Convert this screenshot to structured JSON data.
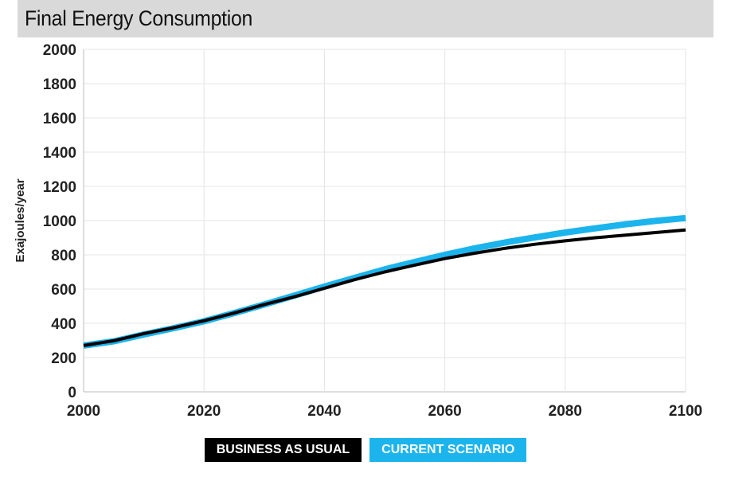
{
  "header": {
    "title": "Final Energy Consumption"
  },
  "legend": {
    "items": [
      "BUSINESS AS USUAL",
      "CURRENT SCENARIO"
    ]
  },
  "colors": {
    "business_as_usual": "#000000",
    "current_scenario": "#1cb4ec",
    "grid": "#e4e4e4",
    "title_bar": "#d9d9d9"
  },
  "chart_data": {
    "type": "line",
    "title": "Final Energy Consumption",
    "xlabel": "",
    "ylabel": "Exajoules/year",
    "xlim": [
      2000,
      2100
    ],
    "ylim": [
      0,
      2000
    ],
    "x_ticks": [
      2000,
      2020,
      2040,
      2060,
      2080,
      2100
    ],
    "y_ticks": [
      0,
      200,
      400,
      600,
      800,
      1000,
      1200,
      1400,
      1600,
      1800,
      2000
    ],
    "grid": true,
    "legend_position": "bottom",
    "x": [
      2000,
      2005,
      2010,
      2015,
      2020,
      2025,
      2030,
      2035,
      2040,
      2045,
      2050,
      2055,
      2060,
      2065,
      2070,
      2075,
      2080,
      2085,
      2090,
      2095,
      2100
    ],
    "series": [
      {
        "name": "BUSINESS AS USUAL",
        "values": [
          270,
          298,
          340,
          375,
          415,
          460,
          510,
          555,
          605,
          655,
          700,
          740,
          778,
          810,
          838,
          862,
          882,
          900,
          915,
          930,
          945
        ]
      },
      {
        "name": "CURRENT SCENARIO",
        "values": [
          270,
          295,
          335,
          372,
          412,
          460,
          510,
          562,
          615,
          665,
          715,
          758,
          800,
          838,
          872,
          902,
          930,
          955,
          978,
          998,
          1015
        ]
      }
    ]
  }
}
